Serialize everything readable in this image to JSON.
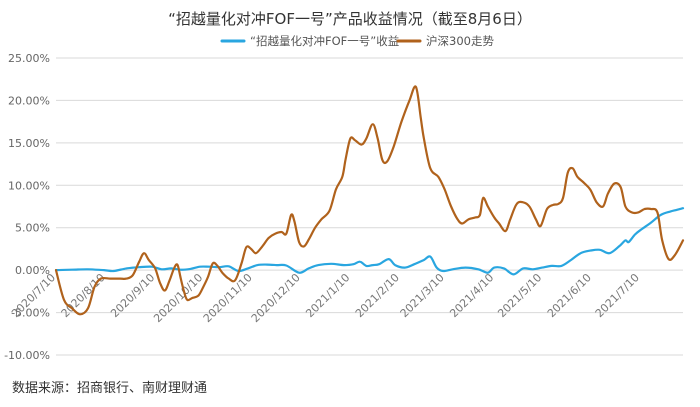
{
  "chart_data": {
    "type": "line",
    "title": "“招越量化对冲FOF一号”产品收益情况（截至8月6日）",
    "source": "数据来源：招商银行、南财理财通",
    "ylim": [
      -10,
      25
    ],
    "yticks": [
      "-10.00%",
      "-5.00%",
      "0.00%",
      "5.00%",
      "10.00%",
      "15.00%",
      "20.00%",
      "25.00%"
    ],
    "ytick_values": [
      -10,
      -5,
      0,
      5,
      10,
      15,
      20,
      25
    ],
    "x_tick_labels": [
      "2020/7/10",
      "2020/8/10",
      "2020/9/10",
      "2020/10/10",
      "2020/11/10",
      "2020/12/10",
      "2021/1/10",
      "2021/2/10",
      "2021/3/10",
      "2021/4/10",
      "2021/5/10",
      "2021/6/10",
      "2021/7/10"
    ],
    "x_tick_days": [
      0,
      31,
      62,
      92,
      123,
      153,
      184,
      215,
      243,
      274,
      304,
      335,
      365
    ],
    "xlim_days": [
      0,
      392
    ],
    "grid": true,
    "legend_position": "top",
    "series": [
      {
        "name": "“招越量化对冲FOF一号”收益",
        "color": "#29a6e0",
        "points": [
          [
            0,
            0
          ],
          [
            10,
            0.05
          ],
          [
            20,
            0.1
          ],
          [
            30,
            0.0
          ],
          [
            36,
            -0.1
          ],
          [
            44,
            0.2
          ],
          [
            52,
            0.35
          ],
          [
            60,
            0.4
          ],
          [
            66,
            0.1
          ],
          [
            72,
            0.2
          ],
          [
            78,
            0.05
          ],
          [
            84,
            0.15
          ],
          [
            90,
            0.4
          ],
          [
            96,
            0.4
          ],
          [
            102,
            0.35
          ],
          [
            108,
            0.45
          ],
          [
            114,
            -0.1
          ],
          [
            120,
            0.2
          ],
          [
            126,
            0.6
          ],
          [
            132,
            0.65
          ],
          [
            138,
            0.6
          ],
          [
            144,
            0.55
          ],
          [
            152,
            -0.3
          ],
          [
            158,
            0.2
          ],
          [
            164,
            0.6
          ],
          [
            172,
            0.75
          ],
          [
            180,
            0.6
          ],
          [
            186,
            0.7
          ],
          [
            190,
            1.0
          ],
          [
            194,
            0.5
          ],
          [
            198,
            0.6
          ],
          [
            202,
            0.7
          ],
          [
            208,
            1.3
          ],
          [
            212,
            0.6
          ],
          [
            218,
            0.3
          ],
          [
            224,
            0.7
          ],
          [
            230,
            1.2
          ],
          [
            234,
            1.6
          ],
          [
            238,
            0.3
          ],
          [
            242,
            -0.1
          ],
          [
            248,
            0.1
          ],
          [
            256,
            0.3
          ],
          [
            264,
            0.1
          ],
          [
            270,
            -0.3
          ],
          [
            274,
            0.3
          ],
          [
            280,
            0.2
          ],
          [
            286,
            -0.5
          ],
          [
            292,
            0.2
          ],
          [
            298,
            0.1
          ],
          [
            304,
            0.3
          ],
          [
            310,
            0.5
          ],
          [
            316,
            0.5
          ],
          [
            322,
            1.2
          ],
          [
            328,
            2.0
          ],
          [
            334,
            2.3
          ],
          [
            340,
            2.4
          ],
          [
            346,
            2.0
          ],
          [
            352,
            2.8
          ],
          [
            356,
            3.5
          ],
          [
            358,
            3.3
          ],
          [
            362,
            4.2
          ],
          [
            366,
            4.8
          ],
          [
            372,
            5.6
          ],
          [
            378,
            6.5
          ],
          [
            384,
            6.9
          ],
          [
            388,
            7.1
          ],
          [
            392,
            7.3
          ]
        ]
      },
      {
        "name": "沪深300走势",
        "color": "#b0621c",
        "points": [
          [
            0,
            0
          ],
          [
            5,
            -3.5
          ],
          [
            10,
            -4.5
          ],
          [
            15,
            -5.2
          ],
          [
            20,
            -4.5
          ],
          [
            24,
            -2.0
          ],
          [
            28,
            -1.0
          ],
          [
            34,
            -1.0
          ],
          [
            40,
            -1.0
          ],
          [
            44,
            -1.0
          ],
          [
            48,
            -0.6
          ],
          [
            52,
            1.0
          ],
          [
            55,
            2.0
          ],
          [
            58,
            1.2
          ],
          [
            62,
            0.2
          ],
          [
            65,
            -1.5
          ],
          [
            68,
            -2.4
          ],
          [
            71,
            -1.2
          ],
          [
            74,
            0.3
          ],
          [
            76,
            0.6
          ],
          [
            78,
            -1.0
          ],
          [
            80,
            -2.5
          ],
          [
            82,
            -3.5
          ],
          [
            85,
            -3.3
          ],
          [
            89,
            -3.0
          ],
          [
            92,
            -2.0
          ],
          [
            95,
            -0.8
          ],
          [
            98,
            0.8
          ],
          [
            101,
            0.5
          ],
          [
            104,
            -0.3
          ],
          [
            108,
            -1.0
          ],
          [
            112,
            -1.2
          ],
          [
            116,
            0.8
          ],
          [
            119,
            2.7
          ],
          [
            122,
            2.5
          ],
          [
            125,
            2.0
          ],
          [
            129,
            2.8
          ],
          [
            133,
            3.8
          ],
          [
            137,
            4.3
          ],
          [
            141,
            4.5
          ],
          [
            144,
            4.3
          ],
          [
            147,
            6.5
          ],
          [
            149,
            5.8
          ],
          [
            152,
            3.3
          ],
          [
            155,
            2.8
          ],
          [
            158,
            3.6
          ],
          [
            162,
            5.0
          ],
          [
            166,
            6.0
          ],
          [
            171,
            7.0
          ],
          [
            175,
            9.5
          ],
          [
            179,
            11.0
          ],
          [
            181,
            13.0
          ],
          [
            184,
            15.5
          ],
          [
            187,
            15.3
          ],
          [
            191,
            14.8
          ],
          [
            194,
            15.5
          ],
          [
            198,
            17.2
          ],
          [
            201,
            15.6
          ],
          [
            204,
            13.0
          ],
          [
            207,
            12.8
          ],
          [
            211,
            14.5
          ],
          [
            216,
            17.5
          ],
          [
            221,
            20.0
          ],
          [
            225,
            21.6
          ],
          [
            228,
            18.0
          ],
          [
            230,
            15.5
          ],
          [
            234,
            12.0
          ],
          [
            239,
            11.0
          ],
          [
            243,
            9.5
          ],
          [
            247,
            7.5
          ],
          [
            251,
            6.0
          ],
          [
            254,
            5.5
          ],
          [
            258,
            6.0
          ],
          [
            262,
            6.2
          ],
          [
            265,
            6.5
          ],
          [
            267,
            8.5
          ],
          [
            270,
            7.5
          ],
          [
            274,
            6.2
          ],
          [
            277,
            5.5
          ],
          [
            281,
            4.6
          ],
          [
            284,
            6.0
          ],
          [
            288,
            7.8
          ],
          [
            292,
            8.0
          ],
          [
            296,
            7.5
          ],
          [
            300,
            6.0
          ],
          [
            303,
            5.2
          ],
          [
            307,
            7.2
          ],
          [
            311,
            7.7
          ],
          [
            314,
            7.8
          ],
          [
            317,
            8.5
          ],
          [
            320,
            11.5
          ],
          [
            323,
            12.0
          ],
          [
            326,
            11.0
          ],
          [
            330,
            10.3
          ],
          [
            334,
            9.5
          ],
          [
            338,
            8.0
          ],
          [
            342,
            7.5
          ],
          [
            345,
            9.0
          ],
          [
            349,
            10.2
          ],
          [
            353,
            9.8
          ],
          [
            356,
            7.5
          ],
          [
            360,
            6.8
          ],
          [
            364,
            6.8
          ],
          [
            368,
            7.2
          ],
          [
            372,
            7.2
          ],
          [
            376,
            6.8
          ],
          [
            379,
            3.5
          ],
          [
            383,
            1.3
          ],
          [
            387,
            1.8
          ],
          [
            392,
            3.5
          ]
        ]
      }
    ]
  }
}
